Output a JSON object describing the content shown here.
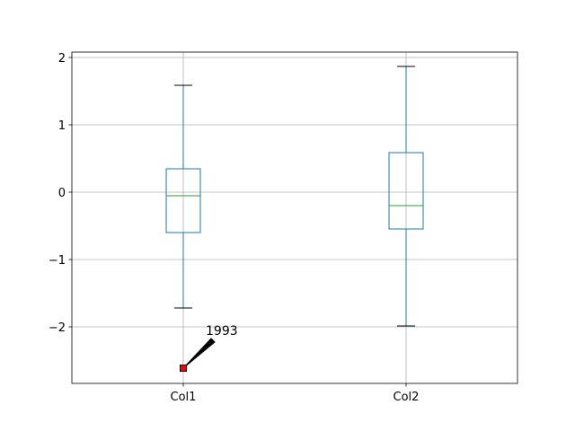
{
  "chart_data": {
    "type": "box",
    "categories": [
      "Col1",
      "Col2"
    ],
    "boxes": [
      {
        "whisker_low": -1.72,
        "q1": -0.6,
        "median": -0.053,
        "q3": 0.347,
        "whisker_high": 1.587,
        "outliers": [
          -2.613
        ]
      },
      {
        "whisker_low": -1.987,
        "q1": -0.547,
        "median": -0.2,
        "q3": 0.587,
        "whisker_high": 1.867,
        "outliers": []
      }
    ],
    "box_color": "#1f77b4",
    "median_color": "#2ca02c",
    "cap_color": "#000000",
    "outlier_color": "#ff0000",
    "annotations": [
      {
        "text": "1993"
      }
    ],
    "ylim": [
      -2.84,
      2.08
    ],
    "yticks": [
      {
        "value": -2,
        "label": "−2"
      },
      {
        "value": -1,
        "label": "−1"
      },
      0,
      1,
      2
    ],
    "grid": true
  }
}
